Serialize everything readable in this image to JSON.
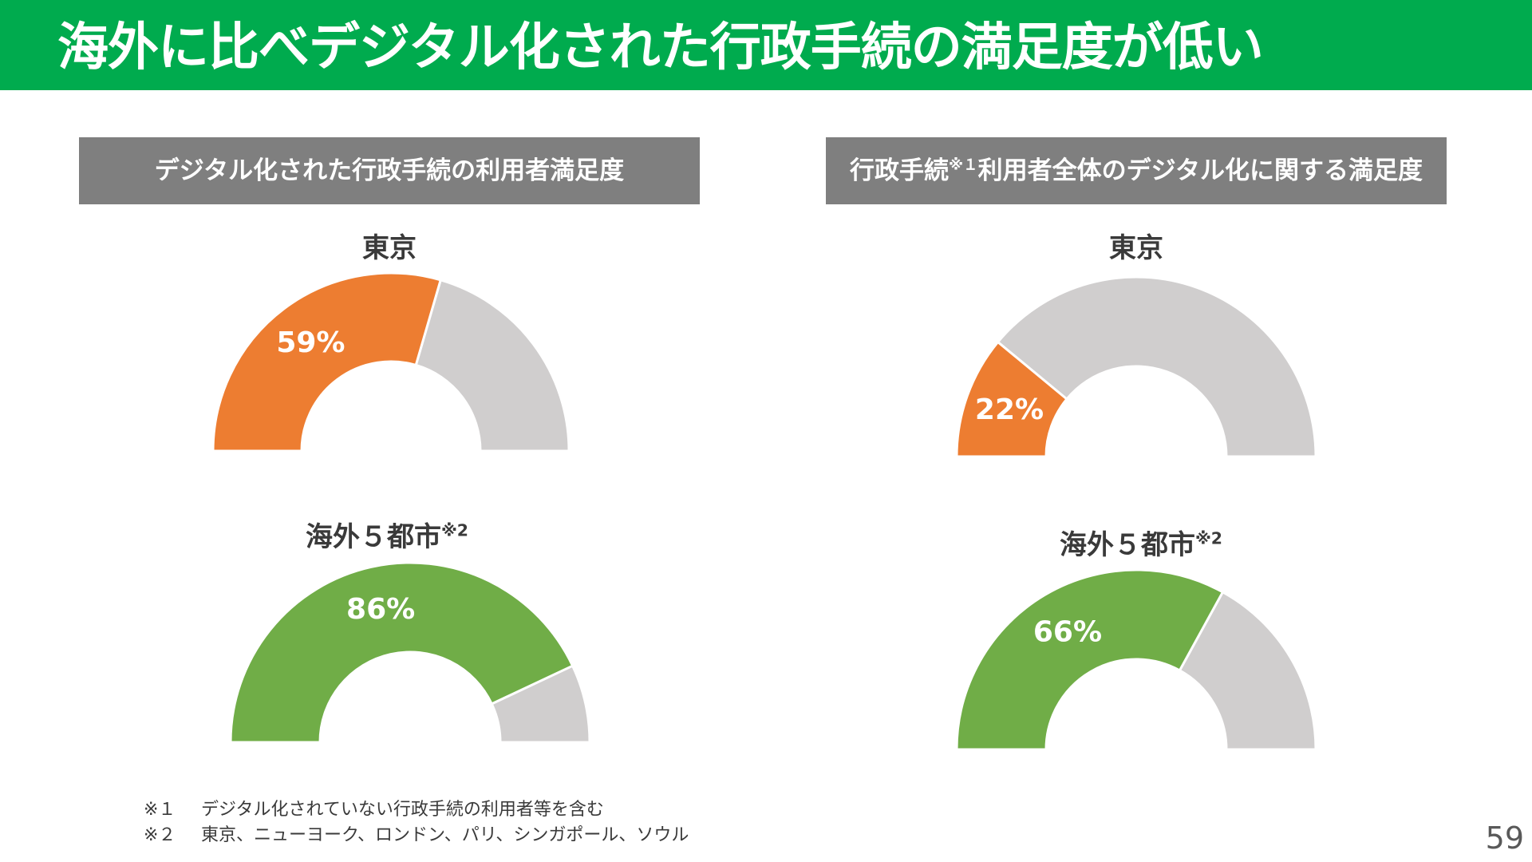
{
  "title": "海外に比べデジタル化された行政手続の満足度が低い",
  "panels": [
    {
      "header": "デジタル化された行政手続の利用者満足度",
      "header_note": ""
    },
    {
      "header_before": "行政手続",
      "header_note": "※１",
      "header_after": "利用者全体のデジタル化に関する満足度"
    }
  ],
  "labels": {
    "tokyo": "東京",
    "overseas": "海外５都市",
    "overseas_note": "※2"
  },
  "chart_data": [
    {
      "type": "donut-gauge",
      "panel": "デジタル化された行政手続の利用者満足度",
      "series": "東京",
      "value": 59,
      "value_label": "59%",
      "max": 100,
      "color": "#ed7d31",
      "remainder_color": "#d0cece"
    },
    {
      "type": "donut-gauge",
      "panel": "デジタル化された行政手続の利用者満足度",
      "series": "海外５都市",
      "value": 86,
      "value_label": "86%",
      "max": 100,
      "color": "#70ad47",
      "remainder_color": "#d0cece"
    },
    {
      "type": "donut-gauge",
      "panel": "行政手続利用者全体のデジタル化に関する満足度",
      "series": "東京",
      "value": 22,
      "value_label": "22%",
      "max": 100,
      "color": "#ed7d31",
      "remainder_color": "#d0cece"
    },
    {
      "type": "donut-gauge",
      "panel": "行政手続利用者全体のデジタル化に関する満足度",
      "series": "海外５都市",
      "value": 66,
      "value_label": "66%",
      "max": 100,
      "color": "#70ad47",
      "remainder_color": "#d0cece"
    }
  ],
  "footnotes": [
    {
      "mark": "※１",
      "text": "デジタル化されていない行政手続の利用者等を含む"
    },
    {
      "mark": "※２",
      "text": "東京、ニューヨーク、ロンドン、パリ、シンガポール、ソウル"
    }
  ],
  "page_number": "59"
}
